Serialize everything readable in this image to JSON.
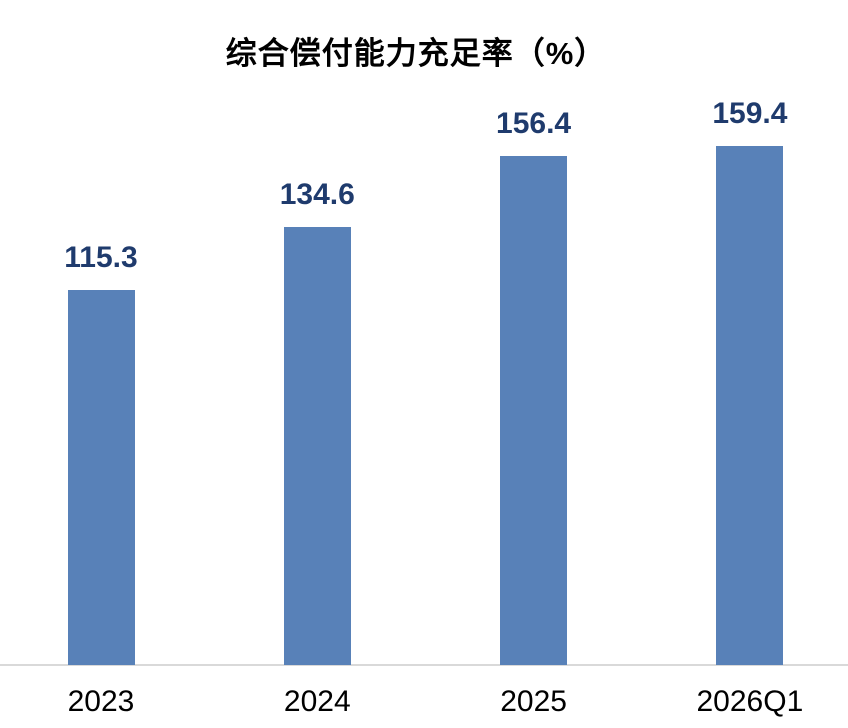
{
  "chart_data": {
    "type": "bar",
    "title": "综合偿付能力充足率（%）",
    "categories": [
      "2023",
      "2024",
      "2025",
      "2026Q1"
    ],
    "values": [
      115.3,
      134.6,
      156.4,
      159.4
    ],
    "data_labels": [
      "115.3",
      "134.6",
      "156.4",
      "159.4"
    ],
    "xlabel": "",
    "ylabel": "",
    "ylim": [
      0,
      180
    ],
    "grid": false,
    "legend": false,
    "bar_color": "#5881B8",
    "value_label_color": "#1F3B6D",
    "axis_line_color": "#D9D9D9",
    "category_label_color": "#000000",
    "title_color": "#000000"
  }
}
